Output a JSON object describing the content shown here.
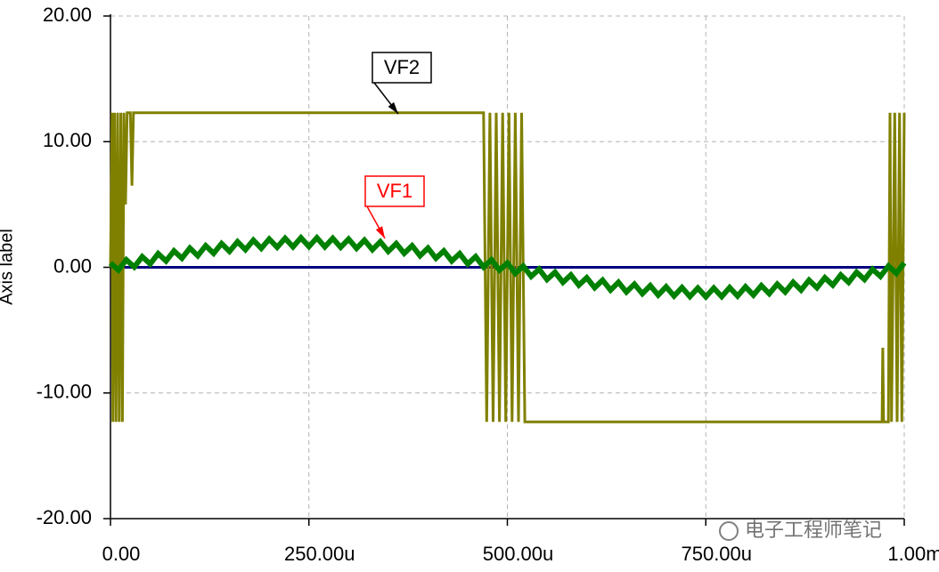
{
  "chart_data": {
    "type": "line",
    "y_label": "Axis label",
    "xlim": [
      0,
      1000
    ],
    "xticks": [
      {
        "value": 0,
        "label": "0.00"
      },
      {
        "value": 250,
        "label": "250.00u"
      },
      {
        "value": 500,
        "label": "500.00u"
      },
      {
        "value": 750,
        "label": "750.00u"
      },
      {
        "value": 1000,
        "label": "1.00m"
      }
    ],
    "ylim": [
      -20,
      20
    ],
    "yticks": [
      {
        "value": -20,
        "label": "-20.00"
      },
      {
        "value": -10,
        "label": "-10.00"
      },
      {
        "value": 0,
        "label": "0.00"
      },
      {
        "value": 10,
        "label": "10.00"
      },
      {
        "value": 20,
        "label": "20.00"
      }
    ],
    "grid": true,
    "x": [
      0,
      10,
      20,
      30,
      40,
      50,
      60,
      70,
      80,
      90,
      100,
      110,
      120,
      130,
      140,
      150,
      160,
      170,
      180,
      190,
      200,
      210,
      220,
      230,
      240,
      250,
      260,
      270,
      280,
      290,
      300,
      310,
      320,
      330,
      340,
      350,
      360,
      370,
      380,
      390,
      400,
      410,
      420,
      430,
      440,
      450,
      460,
      470,
      480,
      490,
      500,
      510,
      520,
      530,
      540,
      550,
      560,
      570,
      580,
      590,
      600,
      610,
      620,
      630,
      640,
      650,
      660,
      670,
      680,
      690,
      700,
      710,
      720,
      730,
      740,
      750,
      760,
      770,
      780,
      790,
      800,
      810,
      820,
      830,
      840,
      850,
      860,
      870,
      880,
      890,
      900,
      910,
      920,
      930,
      940,
      950,
      960,
      970,
      980,
      990,
      1000
    ],
    "series": [
      {
        "x": [
          0,
          1000
        ],
        "values": [
          0,
          0
        ],
        "color": "#000080"
      },
      {
        "name": "VF2",
        "color": "#808000",
        "x": [
          0,
          2,
          3,
          5,
          7,
          9,
          11,
          13,
          15,
          17,
          19,
          21,
          25,
          27,
          29,
          470,
          474,
          478,
          482,
          486,
          490,
          494,
          498,
          502,
          506,
          510,
          514,
          518,
          522,
          972,
          973,
          974,
          980,
          982,
          984,
          988,
          991,
          994,
          997,
          1000
        ],
        "values": [
          0,
          12.3,
          -12.3,
          12.3,
          -12.3,
          12.3,
          -12.3,
          12.3,
          -12.3,
          12.3,
          5,
          12.3,
          12.3,
          6.5,
          12.3,
          12.3,
          -12.3,
          12.3,
          -12.3,
          12.3,
          -12.3,
          12.3,
          -12.3,
          12.3,
          -12.3,
          12.3,
          -12.3,
          12.3,
          -12.3,
          -12.3,
          -6.4,
          -12.3,
          -12.3,
          12.3,
          -12.3,
          12.3,
          -12.3,
          12.3,
          -12.3,
          12.3
        ]
      },
      {
        "name": "VF1",
        "color": "#008000",
        "values": [
          0.35,
          -0.22,
          0.6,
          0.02,
          0.85,
          0.27,
          1.09,
          0.5,
          1.31,
          0.72,
          1.53,
          0.92,
          1.72,
          1.11,
          1.89,
          1.27,
          2.04,
          1.4,
          2.16,
          1.51,
          2.25,
          1.59,
          2.31,
          1.63,
          2.35,
          1.65,
          2.35,
          1.63,
          2.31,
          1.59,
          2.25,
          1.51,
          2.16,
          1.4,
          2.04,
          1.27,
          1.89,
          1.11,
          1.72,
          0.92,
          1.53,
          0.72,
          1.31,
          0.5,
          1.09,
          0.27,
          0.85,
          0.02,
          0.6,
          -0.22,
          0.35,
          -0.48,
          0.1,
          -0.72,
          -0.15,
          -0.97,
          -0.39,
          -1.2,
          -0.61,
          -1.42,
          -0.83,
          -1.62,
          -1.02,
          -1.81,
          -1.19,
          -1.97,
          -1.34,
          -2.1,
          -1.46,
          -2.21,
          -1.55,
          -2.29,
          -1.61,
          -2.33,
          -1.65,
          -2.35,
          -1.65,
          -2.33,
          -1.61,
          -2.29,
          -1.55,
          -2.21,
          -1.46,
          -2.1,
          -1.34,
          -1.97,
          -1.19,
          -1.81,
          -1.02,
          -1.62,
          -0.83,
          -1.42,
          -0.61,
          -1.2,
          -0.39,
          -0.97,
          -0.15,
          -0.72,
          0.1,
          -0.48,
          0.35
        ]
      }
    ],
    "annotations": [
      {
        "text": "VF2",
        "color": "#000000"
      },
      {
        "text": "VF1",
        "color": "#ff0000"
      }
    ],
    "watermark": "电子工程师笔记"
  }
}
